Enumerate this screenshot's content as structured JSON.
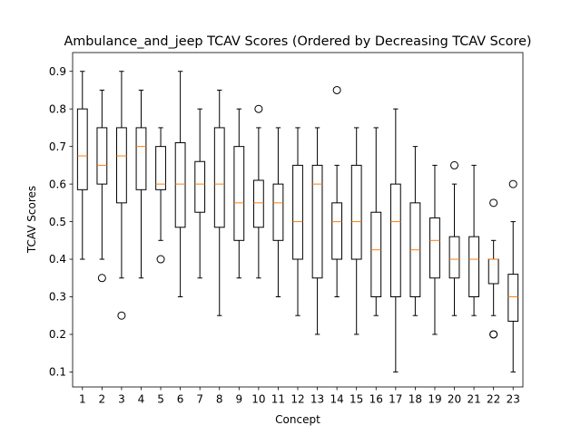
{
  "chart_data": {
    "type": "boxplot",
    "title": "Ambulance_and_jeep TCAV Scores (Ordered by Decreasing TCAV Score)",
    "xlabel": "Concept",
    "ylabel": "TCAV Scores",
    "categories": [
      "1",
      "2",
      "3",
      "4",
      "5",
      "6",
      "7",
      "8",
      "9",
      "10",
      "11",
      "12",
      "13",
      "14",
      "15",
      "16",
      "17",
      "18",
      "19",
      "20",
      "21",
      "22",
      "23"
    ],
    "ylim": [
      0.06,
      0.95
    ],
    "yticks": [
      "0.1",
      "0.2",
      "0.3",
      "0.4",
      "0.5",
      "0.6",
      "0.7",
      "0.8",
      "0.9"
    ],
    "grid": false,
    "colors": {
      "box": "#000000",
      "median": "#ff7f0e",
      "background": "#ffffff"
    },
    "boxes": [
      {
        "whislo": 0.4,
        "q1": 0.585,
        "med": 0.675,
        "q3": 0.8,
        "whishi": 0.9,
        "fliers": []
      },
      {
        "whislo": 0.4,
        "q1": 0.6,
        "med": 0.65,
        "q3": 0.75,
        "whishi": 0.85,
        "fliers": [
          0.35
        ]
      },
      {
        "whislo": 0.35,
        "q1": 0.55,
        "med": 0.675,
        "q3": 0.75,
        "whishi": 0.9,
        "fliers": [
          0.25
        ]
      },
      {
        "whislo": 0.35,
        "q1": 0.585,
        "med": 0.7,
        "q3": 0.75,
        "whishi": 0.85,
        "fliers": []
      },
      {
        "whislo": 0.45,
        "q1": 0.585,
        "med": 0.6,
        "q3": 0.7,
        "whishi": 0.75,
        "fliers": [
          0.4
        ]
      },
      {
        "whislo": 0.3,
        "q1": 0.485,
        "med": 0.6,
        "q3": 0.71,
        "whishi": 0.9,
        "fliers": []
      },
      {
        "whislo": 0.35,
        "q1": 0.525,
        "med": 0.6,
        "q3": 0.66,
        "whishi": 0.8,
        "fliers": []
      },
      {
        "whislo": 0.25,
        "q1": 0.485,
        "med": 0.6,
        "q3": 0.75,
        "whishi": 0.85,
        "fliers": []
      },
      {
        "whislo": 0.35,
        "q1": 0.45,
        "med": 0.55,
        "q3": 0.7,
        "whishi": 0.8,
        "fliers": []
      },
      {
        "whislo": 0.35,
        "q1": 0.485,
        "med": 0.55,
        "q3": 0.61,
        "whishi": 0.75,
        "fliers": [
          0.8
        ]
      },
      {
        "whislo": 0.3,
        "q1": 0.45,
        "med": 0.55,
        "q3": 0.6,
        "whishi": 0.75,
        "fliers": []
      },
      {
        "whislo": 0.25,
        "q1": 0.4,
        "med": 0.5,
        "q3": 0.65,
        "whishi": 0.75,
        "fliers": []
      },
      {
        "whislo": 0.2,
        "q1": 0.35,
        "med": 0.6,
        "q3": 0.65,
        "whishi": 0.75,
        "fliers": []
      },
      {
        "whislo": 0.3,
        "q1": 0.4,
        "med": 0.5,
        "q3": 0.55,
        "whishi": 0.65,
        "fliers": [
          0.85
        ]
      },
      {
        "whislo": 0.2,
        "q1": 0.4,
        "med": 0.5,
        "q3": 0.65,
        "whishi": 0.75,
        "fliers": []
      },
      {
        "whislo": 0.25,
        "q1": 0.3,
        "med": 0.425,
        "q3": 0.525,
        "whishi": 0.75,
        "fliers": []
      },
      {
        "whislo": 0.1,
        "q1": 0.3,
        "med": 0.5,
        "q3": 0.6,
        "whishi": 0.8,
        "fliers": []
      },
      {
        "whislo": 0.25,
        "q1": 0.3,
        "med": 0.425,
        "q3": 0.55,
        "whishi": 0.7,
        "fliers": []
      },
      {
        "whislo": 0.2,
        "q1": 0.35,
        "med": 0.45,
        "q3": 0.51,
        "whishi": 0.65,
        "fliers": []
      },
      {
        "whislo": 0.25,
        "q1": 0.35,
        "med": 0.4,
        "q3": 0.46,
        "whishi": 0.6,
        "fliers": [
          0.65
        ]
      },
      {
        "whislo": 0.25,
        "q1": 0.3,
        "med": 0.4,
        "q3": 0.46,
        "whishi": 0.65,
        "fliers": []
      },
      {
        "whislo": 0.25,
        "q1": 0.335,
        "med": 0.4,
        "q3": 0.4,
        "whishi": 0.45,
        "fliers": [
          0.55,
          0.2,
          0.2
        ]
      },
      {
        "whislo": 0.1,
        "q1": 0.235,
        "med": 0.3,
        "q3": 0.36,
        "whishi": 0.5,
        "fliers": [
          0.6
        ]
      }
    ]
  }
}
